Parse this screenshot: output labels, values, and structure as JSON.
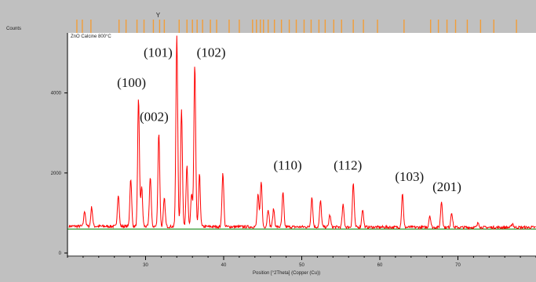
{
  "chart_data": {
    "type": "line",
    "ylabel": "Counts",
    "xlabel": "Position [°2Theta] (Copper (Cu))",
    "legend_text": "ZnO Calcine 800°C",
    "xlim": [
      20,
      80
    ],
    "ylim": [
      0,
      5500
    ],
    "x_ticks": [
      30,
      40,
      50,
      60,
      70
    ],
    "y_ticks": [
      0,
      2000,
      4000
    ],
    "y_tick_labels": [
      "0",
      "2000",
      "4000"
    ],
    "x_tick_labels": [
      "30",
      "40",
      "50",
      "60",
      "70"
    ],
    "baseline": 600,
    "colors": {
      "pattern": "#ff0000",
      "baseline": "#008000",
      "reference_markers": "#f29d38",
      "header_bar": "#c0c0c0"
    },
    "peaks": [
      {
        "x": 22.2,
        "y": 980
      },
      {
        "x": 23.1,
        "y": 1080
      },
      {
        "x": 26.5,
        "y": 1400
      },
      {
        "x": 28.1,
        "y": 1800
      },
      {
        "x": 29.1,
        "y": 3800
      },
      {
        "x": 29.5,
        "y": 1600
      },
      {
        "x": 30.6,
        "y": 1850
      },
      {
        "x": 31.7,
        "y": 2950
      },
      {
        "x": 32.4,
        "y": 1300
      },
      {
        "x": 34.0,
        "y": 5400
      },
      {
        "x": 34.6,
        "y": 3550
      },
      {
        "x": 35.3,
        "y": 2150
      },
      {
        "x": 35.9,
        "y": 1400
      },
      {
        "x": 36.3,
        "y": 4650
      },
      {
        "x": 36.9,
        "y": 1900
      },
      {
        "x": 39.9,
        "y": 1950
      },
      {
        "x": 44.4,
        "y": 1400
      },
      {
        "x": 44.8,
        "y": 1750
      },
      {
        "x": 45.7,
        "y": 1050
      },
      {
        "x": 46.4,
        "y": 1050
      },
      {
        "x": 47.6,
        "y": 1450
      },
      {
        "x": 51.3,
        "y": 1350
      },
      {
        "x": 52.4,
        "y": 1250
      },
      {
        "x": 53.6,
        "y": 900
      },
      {
        "x": 55.3,
        "y": 1150
      },
      {
        "x": 56.6,
        "y": 1700
      },
      {
        "x": 57.8,
        "y": 1050
      },
      {
        "x": 62.9,
        "y": 1450
      },
      {
        "x": 66.4,
        "y": 900
      },
      {
        "x": 67.9,
        "y": 1250
      },
      {
        "x": 69.2,
        "y": 980
      },
      {
        "x": 72.6,
        "y": 720
      },
      {
        "x": 77.0,
        "y": 700
      }
    ],
    "annotations": [
      {
        "text": "(100)",
        "x": 28.2,
        "y": 4150
      },
      {
        "text": "(101)",
        "x": 31.6,
        "y": 4900
      },
      {
        "text": "(102)",
        "x": 38.4,
        "y": 4900
      },
      {
        "text": "(002)",
        "x": 31.1,
        "y": 3300
      },
      {
        "text": "(110)",
        "x": 48.2,
        "y": 2080
      },
      {
        "text": "(112)",
        "x": 55.9,
        "y": 2080
      },
      {
        "text": "(103)",
        "x": 63.8,
        "y": 1800
      },
      {
        "text": "(201)",
        "x": 68.6,
        "y": 1550
      }
    ],
    "reference_markers_x": [
      21.2,
      21.9,
      23.0,
      26.6,
      27.5,
      28.9,
      29.8,
      31.0,
      31.8,
      32.4,
      34.3,
      35.3,
      36.0,
      36.6,
      37.3,
      38.3,
      39.1,
      40.7,
      42.0,
      43.7,
      44.2,
      44.7,
      45.1,
      45.7,
      46.5,
      47.4,
      48.4,
      49.3,
      50.3,
      51.2,
      52.2,
      53.0,
      54.1,
      55.1,
      56.6,
      57.9,
      59.7,
      63.1,
      66.5,
      67.5,
      68.6,
      69.7,
      71.2,
      72.9,
      74.6,
      77.5
    ],
    "reference_marker_symbol": "Y",
    "reference_marker_symbol_x": 31.6
  }
}
